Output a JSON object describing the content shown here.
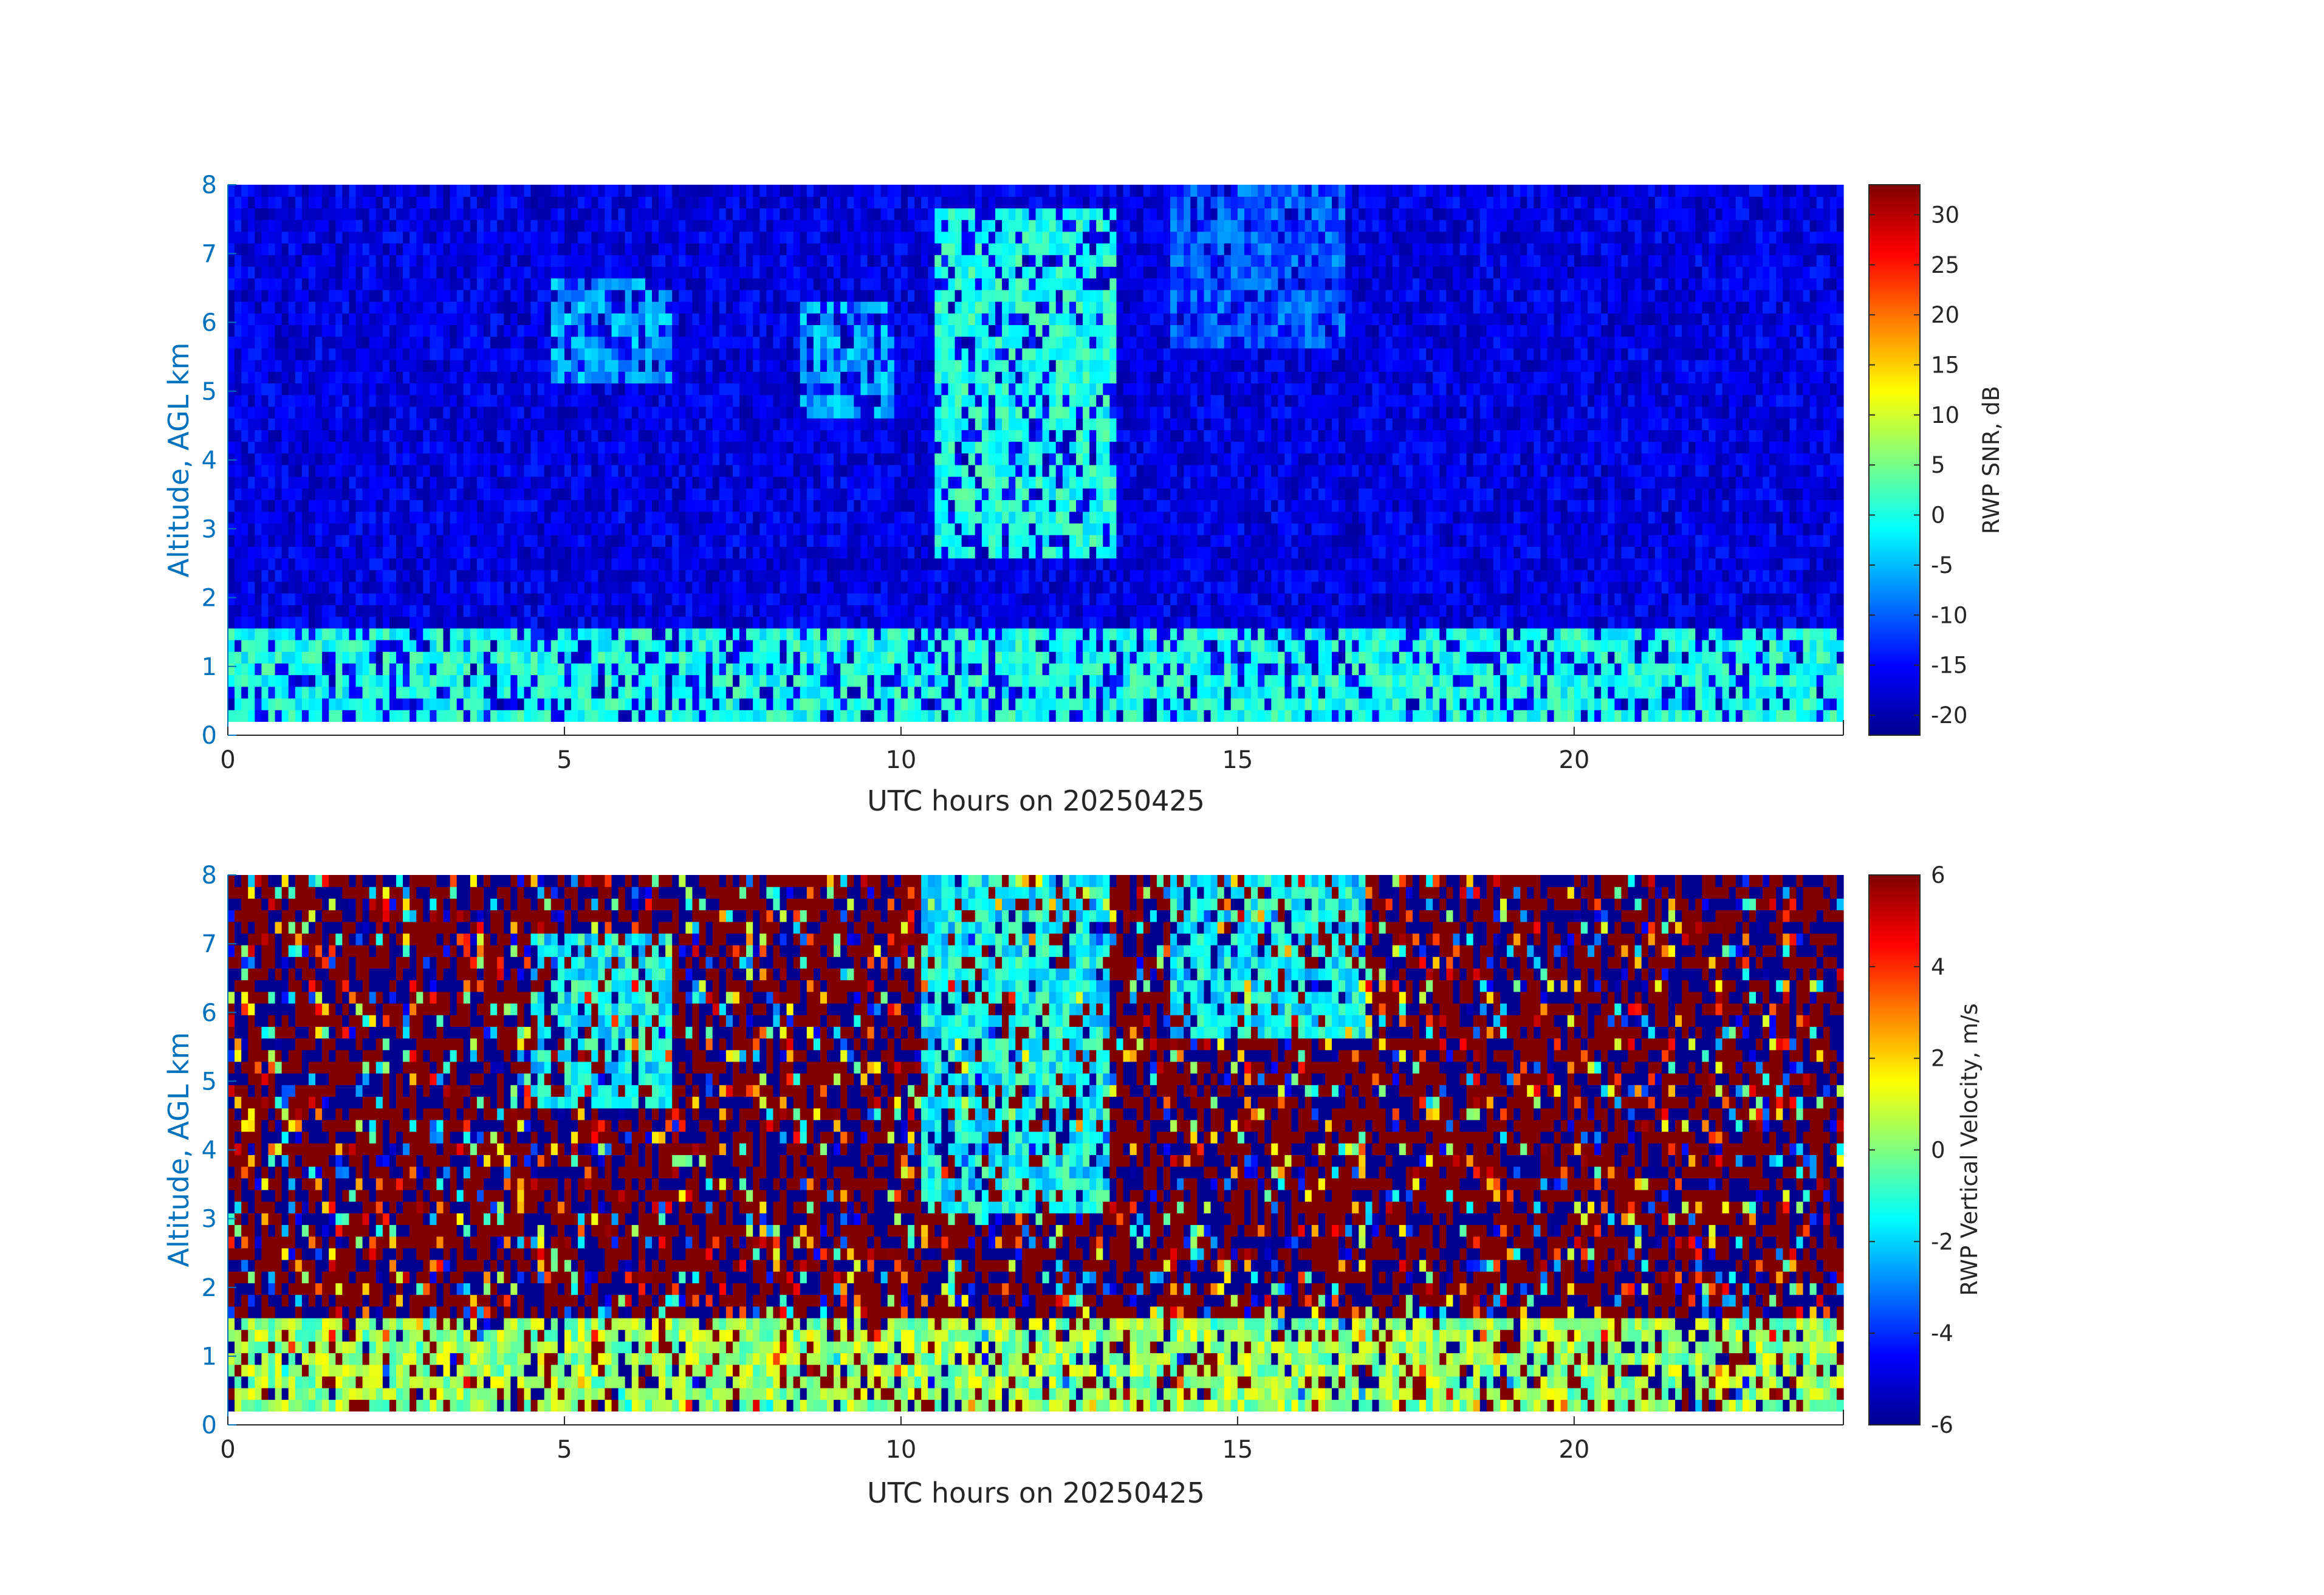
{
  "chart_data": [
    {
      "type": "heatmap",
      "title": "",
      "xlabel": "UTC hours on 20250425",
      "ylabel": "Altitude, AGL km",
      "xlim": [
        0,
        24
      ],
      "ylim": [
        0,
        8
      ],
      "x_ticks": [
        0,
        5,
        10,
        15,
        20
      ],
      "y_ticks": [
        0,
        1,
        2,
        3,
        4,
        5,
        6,
        7,
        8
      ],
      "colormap": "jet",
      "background_color": "#00008F",
      "data_altitude_range_km": [
        0.2,
        8
      ],
      "colorbar": {
        "label": "RWP SNR, dB",
        "range": [
          -22,
          33
        ],
        "ticks": [
          -20,
          -15,
          -10,
          -5,
          0,
          5,
          10,
          15,
          20,
          25,
          30
        ]
      },
      "features": [
        {
          "desc": "boundary layer",
          "hour_range": [
            0,
            24
          ],
          "alt_range_km": [
            0.2,
            1.4
          ],
          "value_db": 0
        },
        {
          "desc": "elevated echoes",
          "hour_range": [
            4.8,
            6.5
          ],
          "alt_range_km": [
            5,
            6.5
          ],
          "value_db": -6
        },
        {
          "desc": "elevated echoes",
          "hour_range": [
            8.5,
            9.8
          ],
          "alt_range_km": [
            4.5,
            6.3
          ],
          "value_db": -6
        },
        {
          "desc": "cloud",
          "hour_range": [
            10.5,
            13.2
          ],
          "alt_range_km": [
            2.5,
            7.5
          ],
          "value_db": 0
        },
        {
          "desc": "high echoes",
          "hour_range": [
            14,
            16.5
          ],
          "alt_range_km": [
            5.5,
            8
          ],
          "value_db": -10
        }
      ]
    },
    {
      "type": "heatmap",
      "title": "",
      "xlabel": "UTC hours on 20250425",
      "ylabel": "Altitude, AGL km",
      "xlim": [
        0,
        24
      ],
      "ylim": [
        0,
        8
      ],
      "x_ticks": [
        0,
        5,
        10,
        15,
        20
      ],
      "y_ticks": [
        0,
        1,
        2,
        3,
        4,
        5,
        6,
        7,
        8
      ],
      "colormap": "jet",
      "colorbar": {
        "label": "RWP Vertical Velocity, m/s",
        "range": [
          -6,
          6
        ],
        "ticks": [
          -6,
          -4,
          -2,
          0,
          2,
          4,
          6
        ]
      },
      "features": [
        {
          "desc": "boundary layer",
          "hour_range": [
            0,
            24
          ],
          "alt_range_km": [
            0.2,
            1.5
          ],
          "value_ms": 0.3
        },
        {
          "desc": "falling particles",
          "hour_range": [
            10.3,
            13
          ],
          "alt_range_km": [
            3,
            8
          ],
          "value_ms": -1.5
        },
        {
          "desc": "falling particles",
          "hour_range": [
            4.5,
            6.5
          ],
          "alt_range_km": [
            4.5,
            7
          ],
          "value_ms": -1.5
        },
        {
          "desc": "falling particles",
          "hour_range": [
            14,
            16.8
          ],
          "alt_range_km": [
            5.5,
            8
          ],
          "value_ms": -1.5
        }
      ]
    }
  ]
}
